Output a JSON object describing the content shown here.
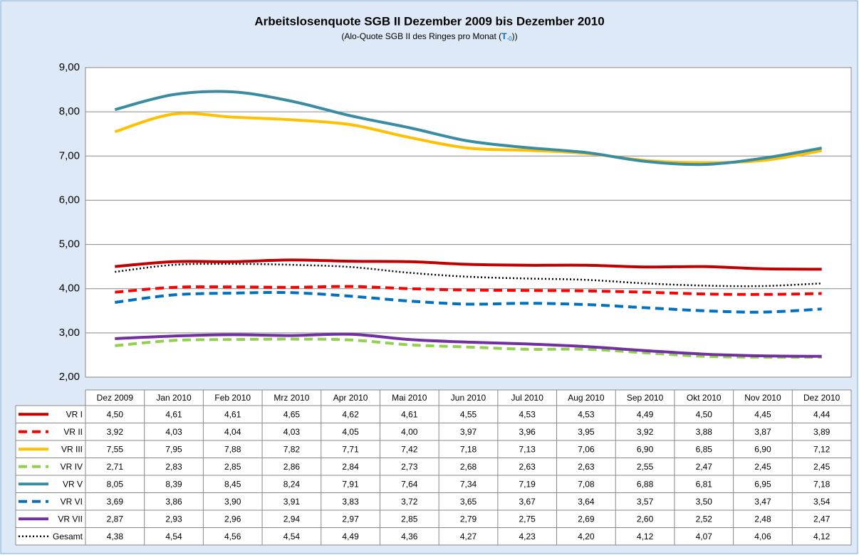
{
  "chart_data": {
    "type": "line",
    "title": "Arbeitslosenquote SGB II Dezember 2009 bis Dezember 2010",
    "subtitle_parts": [
      "(Alo-Quote SGB II des Ringes pro Monat (",
      "T",
      "-0",
      "))"
    ],
    "categories": [
      "Dez 2009",
      "Jan 2010",
      "Feb 2010",
      "Mrz 2010",
      "Apr 2010",
      "Mai 2010",
      "Jun 2010",
      "Jul 2010",
      "Aug 2010",
      "Sep 2010",
      "Okt 2010",
      "Nov 2010",
      "Dez 2010"
    ],
    "ylim": [
      2,
      9
    ],
    "yticks": [
      {
        "value": 2,
        "label": "2,00"
      },
      {
        "value": 3,
        "label": "3,00"
      },
      {
        "value": 4,
        "label": "4,00"
      },
      {
        "value": 5,
        "label": "5,00"
      },
      {
        "value": 6,
        "label": "6,00"
      },
      {
        "value": 7,
        "label": "7,00"
      },
      {
        "value": 8,
        "label": "8,00"
      },
      {
        "value": 9,
        "label": "9,00"
      }
    ],
    "grid": true,
    "series": [
      {
        "name": "VR I",
        "color": "#c00000",
        "dash": "solid",
        "values": [
          4.5,
          4.61,
          4.61,
          4.65,
          4.62,
          4.61,
          4.55,
          4.53,
          4.53,
          4.49,
          4.5,
          4.45,
          4.44
        ],
        "value_labels": [
          "4,50",
          "4,61",
          "4,61",
          "4,65",
          "4,62",
          "4,61",
          "4,55",
          "4,53",
          "4,53",
          "4,49",
          "4,50",
          "4,45",
          "4,44"
        ]
      },
      {
        "name": "VR II",
        "color": "#ff0000",
        "dash": "dash",
        "values": [
          3.92,
          4.03,
          4.04,
          4.03,
          4.05,
          4.0,
          3.97,
          3.96,
          3.95,
          3.92,
          3.88,
          3.87,
          3.89
        ],
        "value_labels": [
          "3,92",
          "4,03",
          "4,04",
          "4,03",
          "4,05",
          "4,00",
          "3,97",
          "3,96",
          "3,95",
          "3,92",
          "3,88",
          "3,87",
          "3,89"
        ]
      },
      {
        "name": "VR III",
        "color": "#ffc000",
        "dash": "solid",
        "values": [
          7.55,
          7.95,
          7.88,
          7.82,
          7.71,
          7.42,
          7.18,
          7.13,
          7.06,
          6.9,
          6.85,
          6.9,
          7.12
        ],
        "value_labels": [
          "7,55",
          "7,95",
          "7,88",
          "7,82",
          "7,71",
          "7,42",
          "7,18",
          "7,13",
          "7,06",
          "6,90",
          "6,85",
          "6,90",
          "7,12"
        ]
      },
      {
        "name": "VR IV",
        "color": "#92d050",
        "dash": "dash",
        "values": [
          2.71,
          2.83,
          2.85,
          2.86,
          2.84,
          2.73,
          2.68,
          2.63,
          2.63,
          2.55,
          2.47,
          2.45,
          2.45
        ],
        "value_labels": [
          "2,71",
          "2,83",
          "2,85",
          "2,86",
          "2,84",
          "2,73",
          "2,68",
          "2,63",
          "2,63",
          "2,55",
          "2,47",
          "2,45",
          "2,45"
        ]
      },
      {
        "name": "VR V",
        "color": "#3a8ca3",
        "dash": "solid",
        "values": [
          8.05,
          8.39,
          8.45,
          8.24,
          7.91,
          7.64,
          7.34,
          7.19,
          7.08,
          6.88,
          6.81,
          6.95,
          7.18
        ],
        "value_labels": [
          "8,05",
          "8,39",
          "8,45",
          "8,24",
          "7,91",
          "7,64",
          "7,34",
          "7,19",
          "7,08",
          "6,88",
          "6,81",
          "6,95",
          "7,18"
        ]
      },
      {
        "name": "VR VI",
        "color": "#0070c0",
        "dash": "dash",
        "values": [
          3.69,
          3.86,
          3.9,
          3.91,
          3.83,
          3.72,
          3.65,
          3.67,
          3.64,
          3.57,
          3.5,
          3.47,
          3.54
        ],
        "value_labels": [
          "3,69",
          "3,86",
          "3,90",
          "3,91",
          "3,83",
          "3,72",
          "3,65",
          "3,67",
          "3,64",
          "3,57",
          "3,50",
          "3,47",
          "3,54"
        ]
      },
      {
        "name": "VR VII",
        "color": "#7030a0",
        "dash": "solid",
        "values": [
          2.87,
          2.93,
          2.96,
          2.94,
          2.97,
          2.85,
          2.79,
          2.75,
          2.69,
          2.6,
          2.52,
          2.48,
          2.47
        ],
        "value_labels": [
          "2,87",
          "2,93",
          "2,96",
          "2,94",
          "2,97",
          "2,85",
          "2,79",
          "2,75",
          "2,69",
          "2,60",
          "2,52",
          "2,48",
          "2,47"
        ]
      },
      {
        "name": "Gesamt",
        "color": "#000000",
        "dash": "dot",
        "values": [
          4.38,
          4.54,
          4.56,
          4.54,
          4.49,
          4.36,
          4.27,
          4.23,
          4.2,
          4.12,
          4.07,
          4.06,
          4.12
        ],
        "value_labels": [
          "4,38",
          "4,54",
          "4,56",
          "4,54",
          "4,49",
          "4,36",
          "4,27",
          "4,23",
          "4,20",
          "4,12",
          "4,07",
          "4,06",
          "4,12"
        ]
      }
    ]
  }
}
